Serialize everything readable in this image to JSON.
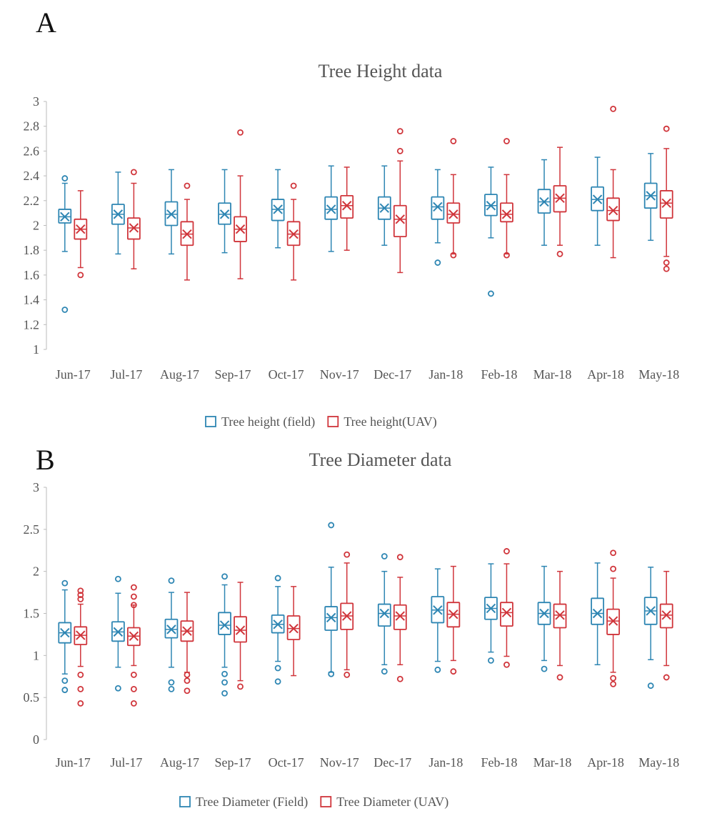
{
  "panels": [
    {
      "label": "A",
      "chart_data": {
        "type": "box",
        "title": "Tree Height data",
        "xlabel": "",
        "ylabel": "",
        "ylim": [
          1,
          3
        ],
        "yticks": [
          "1",
          "1.2",
          "1.4",
          "1.6",
          "1.8",
          "2",
          "2.2",
          "2.4",
          "2.6",
          "2.8",
          "3"
        ],
        "yticks_values": [
          1,
          1.2,
          1.4,
          1.6,
          1.8,
          2,
          2.2,
          2.4,
          2.6,
          2.8,
          3
        ],
        "categories": [
          "Jun-17",
          "Jul-17",
          "Aug-17",
          "Sep-17",
          "Oct-17",
          "Nov-17",
          "Dec-17",
          "Jan-18",
          "Feb-18",
          "Mar-18",
          "Apr-18",
          "May-18"
        ],
        "legend_position": "bottom",
        "series": [
          {
            "name": "Tree height (field)",
            "color": "#2e86b3",
            "boxes": [
              {
                "min": 1.79,
                "q1": 2.02,
                "median": 2.07,
                "q3": 2.13,
                "max": 2.34,
                "mean": 2.07,
                "outliers": [
                  2.38,
                  1.32
                ]
              },
              {
                "min": 1.77,
                "q1": 2.01,
                "median": 2.09,
                "q3": 2.17,
                "max": 2.43,
                "mean": 2.09,
                "outliers": []
              },
              {
                "min": 1.77,
                "q1": 2.0,
                "median": 2.09,
                "q3": 2.19,
                "max": 2.45,
                "mean": 2.09,
                "outliers": []
              },
              {
                "min": 1.78,
                "q1": 2.01,
                "median": 2.09,
                "q3": 2.18,
                "max": 2.45,
                "mean": 2.09,
                "outliers": []
              },
              {
                "min": 1.82,
                "q1": 2.04,
                "median": 2.13,
                "q3": 2.21,
                "max": 2.45,
                "mean": 2.13,
                "outliers": []
              },
              {
                "min": 1.79,
                "q1": 2.05,
                "median": 2.13,
                "q3": 2.23,
                "max": 2.48,
                "mean": 2.13,
                "outliers": []
              },
              {
                "min": 1.84,
                "q1": 2.05,
                "median": 2.14,
                "q3": 2.23,
                "max": 2.48,
                "mean": 2.14,
                "outliers": []
              },
              {
                "min": 1.86,
                "q1": 2.05,
                "median": 2.15,
                "q3": 2.23,
                "max": 2.45,
                "mean": 2.15,
                "outliers": [
                  1.7
                ]
              },
              {
                "min": 1.9,
                "q1": 2.08,
                "median": 2.16,
                "q3": 2.25,
                "max": 2.47,
                "mean": 2.16,
                "outliers": [
                  1.45
                ]
              },
              {
                "min": 1.84,
                "q1": 2.1,
                "median": 2.19,
                "q3": 2.29,
                "max": 2.53,
                "mean": 2.19,
                "outliers": []
              },
              {
                "min": 1.84,
                "q1": 2.12,
                "median": 2.21,
                "q3": 2.31,
                "max": 2.55,
                "mean": 2.21,
                "outliers": []
              },
              {
                "min": 1.88,
                "q1": 2.14,
                "median": 2.24,
                "q3": 2.34,
                "max": 2.58,
                "mean": 2.24,
                "outliers": []
              }
            ]
          },
          {
            "name": "Tree height(UAV)",
            "color": "#d0353b",
            "boxes": [
              {
                "min": 1.66,
                "q1": 1.89,
                "median": 1.97,
                "q3": 2.05,
                "max": 2.28,
                "mean": 1.97,
                "outliers": [
                  1.6
                ]
              },
              {
                "min": 1.65,
                "q1": 1.89,
                "median": 1.98,
                "q3": 2.06,
                "max": 2.34,
                "mean": 1.98,
                "outliers": [
                  2.43
                ]
              },
              {
                "min": 1.56,
                "q1": 1.84,
                "median": 1.93,
                "q3": 2.03,
                "max": 2.21,
                "mean": 1.93,
                "outliers": [
                  2.32
                ]
              },
              {
                "min": 1.57,
                "q1": 1.87,
                "median": 1.97,
                "q3": 2.07,
                "max": 2.4,
                "mean": 1.97,
                "outliers": [
                  2.75
                ]
              },
              {
                "min": 1.56,
                "q1": 1.84,
                "median": 1.93,
                "q3": 2.03,
                "max": 2.21,
                "mean": 1.93,
                "outliers": [
                  2.32
                ]
              },
              {
                "min": 1.8,
                "q1": 2.06,
                "median": 2.16,
                "q3": 2.24,
                "max": 2.47,
                "mean": 2.16,
                "outliers": []
              },
              {
                "min": 1.62,
                "q1": 1.91,
                "median": 2.05,
                "q3": 2.16,
                "max": 2.52,
                "mean": 2.05,
                "outliers": [
                  2.76,
                  2.6
                ]
              },
              {
                "min": 1.77,
                "q1": 2.02,
                "median": 2.09,
                "q3": 2.18,
                "max": 2.41,
                "mean": 2.09,
                "outliers": [
                  2.68,
                  1.76
                ]
              },
              {
                "min": 1.77,
                "q1": 2.03,
                "median": 2.09,
                "q3": 2.18,
                "max": 2.41,
                "mean": 2.09,
                "outliers": [
                  2.68,
                  1.76
                ]
              },
              {
                "min": 1.84,
                "q1": 2.11,
                "median": 2.22,
                "q3": 2.32,
                "max": 2.63,
                "mean": 2.22,
                "outliers": [
                  1.77
                ]
              },
              {
                "min": 1.74,
                "q1": 2.04,
                "median": 2.12,
                "q3": 2.22,
                "max": 2.45,
                "mean": 2.12,
                "outliers": [
                  2.94
                ]
              },
              {
                "min": 1.75,
                "q1": 2.06,
                "median": 2.18,
                "q3": 2.28,
                "max": 2.62,
                "mean": 2.18,
                "outliers": [
                  2.78,
                  1.7,
                  1.65
                ]
              }
            ]
          }
        ]
      }
    },
    {
      "label": "B",
      "chart_data": {
        "type": "box",
        "title": "Tree Diameter data",
        "xlabel": "",
        "ylabel": "",
        "ylim": [
          0,
          3
        ],
        "yticks": [
          "0",
          "0.5",
          "1",
          "1.5",
          "2",
          "2.5",
          "3"
        ],
        "yticks_values": [
          0,
          0.5,
          1,
          1.5,
          2,
          2.5,
          3
        ],
        "categories": [
          "Jun-17",
          "Jul-17",
          "Aug-17",
          "Sep-17",
          "Oct-17",
          "Nov-17",
          "Dec-17",
          "Jan-18",
          "Feb-18",
          "Mar-18",
          "Apr-18",
          "May-18"
        ],
        "legend_position": "bottom",
        "series": [
          {
            "name": "Tree Diameter (Field)",
            "color": "#2e86b3",
            "boxes": [
              {
                "min": 0.78,
                "q1": 1.15,
                "median": 1.27,
                "q3": 1.39,
                "max": 1.78,
                "mean": 1.27,
                "outliers": [
                  1.86,
                  0.7,
                  0.59
                ]
              },
              {
                "min": 0.86,
                "q1": 1.17,
                "median": 1.28,
                "q3": 1.4,
                "max": 1.74,
                "mean": 1.28,
                "outliers": [
                  1.91,
                  0.61
                ]
              },
              {
                "min": 0.86,
                "q1": 1.21,
                "median": 1.31,
                "q3": 1.43,
                "max": 1.75,
                "mean": 1.31,
                "outliers": [
                  1.89,
                  0.68,
                  0.6
                ]
              },
              {
                "min": 0.86,
                "q1": 1.25,
                "median": 1.36,
                "q3": 1.51,
                "max": 1.84,
                "mean": 1.36,
                "outliers": [
                  1.94,
                  0.78,
                  0.68,
                  0.55
                ]
              },
              {
                "min": 0.93,
                "q1": 1.27,
                "median": 1.37,
                "q3": 1.48,
                "max": 1.82,
                "mean": 1.37,
                "outliers": [
                  1.92,
                  0.85,
                  0.69
                ]
              },
              {
                "min": 0.8,
                "q1": 1.3,
                "median": 1.45,
                "q3": 1.58,
                "max": 2.05,
                "mean": 1.45,
                "outliers": [
                  2.55,
                  0.78
                ]
              },
              {
                "min": 0.89,
                "q1": 1.35,
                "median": 1.5,
                "q3": 1.61,
                "max": 2.0,
                "mean": 1.5,
                "outliers": [
                  2.18,
                  0.81
                ]
              },
              {
                "min": 0.93,
                "q1": 1.39,
                "median": 1.54,
                "q3": 1.7,
                "max": 2.03,
                "mean": 1.54,
                "outliers": [
                  0.83
                ]
              },
              {
                "min": 1.04,
                "q1": 1.43,
                "median": 1.56,
                "q3": 1.69,
                "max": 2.09,
                "mean": 1.56,
                "outliers": [
                  0.94
                ]
              },
              {
                "min": 0.94,
                "q1": 1.37,
                "median": 1.5,
                "q3": 1.63,
                "max": 2.06,
                "mean": 1.5,
                "outliers": [
                  0.84
                ]
              },
              {
                "min": 0.89,
                "q1": 1.37,
                "median": 1.5,
                "q3": 1.68,
                "max": 2.1,
                "mean": 1.5,
                "outliers": []
              },
              {
                "min": 0.95,
                "q1": 1.37,
                "median": 1.53,
                "q3": 1.69,
                "max": 2.05,
                "mean": 1.53,
                "outliers": [
                  0.64
                ]
              }
            ]
          },
          {
            "name": "Tree Diameter (UAV)",
            "color": "#d0353b",
            "boxes": [
              {
                "min": 0.87,
                "q1": 1.13,
                "median": 1.24,
                "q3": 1.34,
                "max": 1.61,
                "mean": 1.24,
                "outliers": [
                  1.77,
                  1.72,
                  1.67,
                  0.77,
                  0.6,
                  0.43
                ]
              },
              {
                "min": 0.88,
                "q1": 1.12,
                "median": 1.23,
                "q3": 1.33,
                "max": 1.6,
                "mean": 1.23,
                "outliers": [
                  1.81,
                  1.7,
                  1.6,
                  0.77,
                  0.6,
                  0.43
                ]
              },
              {
                "min": 0.8,
                "q1": 1.17,
                "median": 1.29,
                "q3": 1.41,
                "max": 1.75,
                "mean": 1.29,
                "outliers": [
                  0.77,
                  0.7,
                  0.58
                ]
              },
              {
                "min": 0.7,
                "q1": 1.16,
                "median": 1.3,
                "q3": 1.46,
                "max": 1.87,
                "mean": 1.3,
                "outliers": [
                  0.63
                ]
              },
              {
                "min": 0.76,
                "q1": 1.19,
                "median": 1.32,
                "q3": 1.47,
                "max": 1.82,
                "mean": 1.32,
                "outliers": []
              },
              {
                "min": 0.83,
                "q1": 1.31,
                "median": 1.47,
                "q3": 1.62,
                "max": 2.1,
                "mean": 1.47,
                "outliers": [
                  2.2,
                  0.77
                ]
              },
              {
                "min": 0.89,
                "q1": 1.31,
                "median": 1.47,
                "q3": 1.6,
                "max": 1.93,
                "mean": 1.47,
                "outliers": [
                  2.17,
                  0.72
                ]
              },
              {
                "min": 0.94,
                "q1": 1.34,
                "median": 1.49,
                "q3": 1.63,
                "max": 2.06,
                "mean": 1.49,
                "outliers": [
                  0.81
                ]
              },
              {
                "min": 0.99,
                "q1": 1.35,
                "median": 1.51,
                "q3": 1.63,
                "max": 2.09,
                "mean": 1.51,
                "outliers": [
                  2.24,
                  0.89
                ]
              },
              {
                "min": 0.88,
                "q1": 1.33,
                "median": 1.48,
                "q3": 1.61,
                "max": 2.0,
                "mean": 1.48,
                "outliers": [
                  0.74
                ]
              },
              {
                "min": 0.8,
                "q1": 1.25,
                "median": 1.41,
                "q3": 1.55,
                "max": 1.92,
                "mean": 1.41,
                "outliers": [
                  2.22,
                  2.03,
                  0.73,
                  0.66
                ]
              },
              {
                "min": 0.88,
                "q1": 1.33,
                "median": 1.48,
                "q3": 1.61,
                "max": 2.0,
                "mean": 1.48,
                "outliers": [
                  0.74
                ]
              }
            ]
          }
        ]
      }
    }
  ]
}
